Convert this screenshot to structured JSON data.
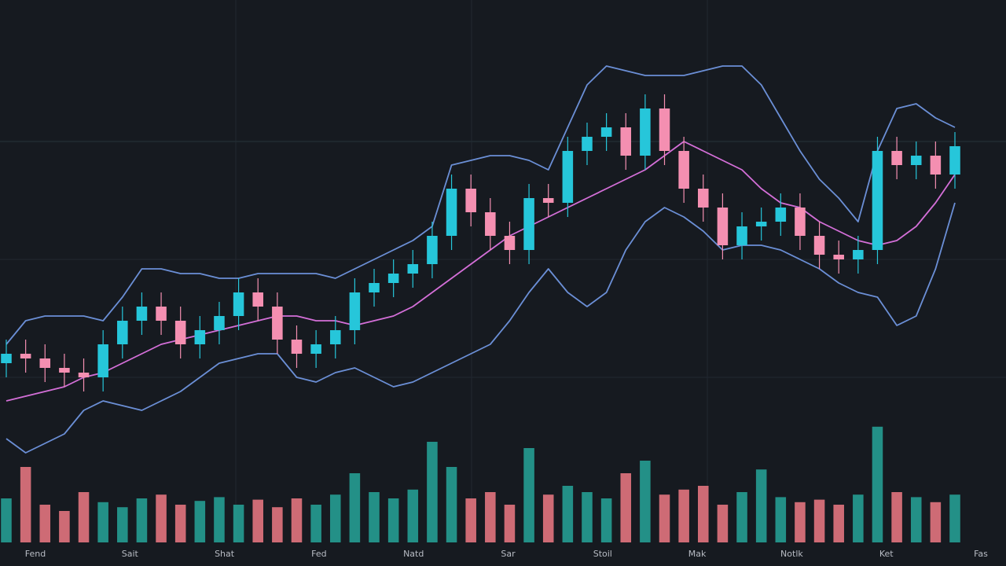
{
  "chart_data": {
    "type": "candlestick",
    "x_labels": [
      "Fend",
      "Sait",
      "Shat",
      "Fed",
      "Natd",
      "Sar",
      "Stoil",
      "Mak",
      "Notlk",
      "Ket",
      "Fas"
    ],
    "open": [
      43,
      45,
      44,
      42,
      41,
      40,
      47,
      52,
      55,
      52,
      47,
      50,
      53,
      58,
      55,
      48,
      45,
      47,
      50,
      58,
      60,
      62,
      64,
      70,
      80,
      75,
      70,
      67,
      78,
      77,
      88,
      91,
      93,
      87,
      97,
      88,
      80,
      76,
      68,
      72,
      73,
      76,
      70,
      66,
      65,
      67,
      88,
      85,
      87,
      83
    ],
    "high": [
      48,
      48,
      47,
      45,
      44,
      50,
      55,
      58,
      58,
      55,
      53,
      56,
      61,
      61,
      58,
      51,
      50,
      53,
      61,
      63,
      65,
      67,
      73,
      83,
      83,
      78,
      73,
      81,
      81,
      91,
      94,
      96,
      96,
      100,
      100,
      91,
      83,
      79,
      75,
      76,
      79,
      79,
      73,
      69,
      70,
      91,
      91,
      90,
      90,
      92
    ],
    "low": [
      40,
      41,
      39,
      38,
      37,
      37,
      44,
      49,
      49,
      44,
      44,
      47,
      50,
      52,
      45,
      42,
      42,
      44,
      47,
      55,
      57,
      59,
      61,
      67,
      72,
      67,
      64,
      64,
      74,
      74,
      85,
      88,
      84,
      84,
      85,
      77,
      73,
      65,
      65,
      69,
      70,
      67,
      63,
      62,
      62,
      64,
      82,
      82,
      80,
      80
    ],
    "close": [
      45,
      44,
      42,
      41,
      40,
      47,
      52,
      55,
      52,
      47,
      50,
      53,
      58,
      55,
      48,
      45,
      47,
      50,
      58,
      60,
      62,
      64,
      70,
      80,
      75,
      70,
      67,
      78,
      77,
      88,
      91,
      93,
      87,
      97,
      88,
      80,
      76,
      68,
      72,
      73,
      76,
      70,
      66,
      65,
      67,
      88,
      85,
      87,
      83,
      89
    ],
    "volume": [
      35,
      60,
      30,
      25,
      40,
      32,
      28,
      35,
      38,
      30,
      33,
      36,
      30,
      34,
      28,
      35,
      30,
      38,
      55,
      40,
      35,
      42,
      80,
      60,
      35,
      40,
      30,
      75,
      38,
      45,
      40,
      35,
      55,
      65,
      38,
      42,
      45,
      30,
      40,
      58,
      36,
      32,
      34,
      30,
      38,
      92,
      40,
      36,
      32,
      38
    ],
    "bands": {
      "upper": [
        47,
        52,
        53,
        53,
        53,
        52,
        57,
        63,
        63,
        62,
        62,
        61,
        61,
        62,
        62,
        62,
        62,
        61,
        63,
        65,
        67,
        69,
        72,
        85,
        86,
        87,
        87,
        86,
        84,
        93,
        102,
        106,
        105,
        104,
        104,
        104,
        105,
        106,
        106,
        102,
        95,
        88,
        82,
        78,
        73,
        88,
        97,
        98,
        95,
        93
      ],
      "middle": [
        35,
        36,
        37,
        38,
        40,
        41,
        43,
        45,
        47,
        48,
        49,
        50,
        51,
        52,
        53,
        53,
        52,
        52,
        51,
        52,
        53,
        55,
        58,
        61,
        64,
        67,
        70,
        72,
        74,
        76,
        78,
        80,
        82,
        84,
        87,
        90,
        88,
        86,
        84,
        80,
        77,
        76,
        73,
        71,
        69,
        68,
        69,
        72,
        77,
        83
      ],
      "lower": [
        27,
        24,
        26,
        28,
        33,
        35,
        34,
        33,
        35,
        37,
        40,
        43,
        44,
        45,
        45,
        40,
        39,
        41,
        42,
        40,
        38,
        39,
        41,
        43,
        45,
        47,
        52,
        58,
        63,
        58,
        55,
        58,
        67,
        73,
        76,
        74,
        71,
        67,
        68,
        68,
        67,
        65,
        63,
        60,
        58,
        57,
        51,
        53,
        63,
        77
      ]
    },
    "ylim": [
      0,
      120
    ],
    "volume_ylim": [
      0,
      100
    ],
    "colors": {
      "up": "#26c6da",
      "down": "#f48fb1",
      "volume_up": "#26a69a",
      "volume_down": "#ef7a85",
      "band": "#6b8fd6",
      "middle": "#d46fd8"
    }
  }
}
